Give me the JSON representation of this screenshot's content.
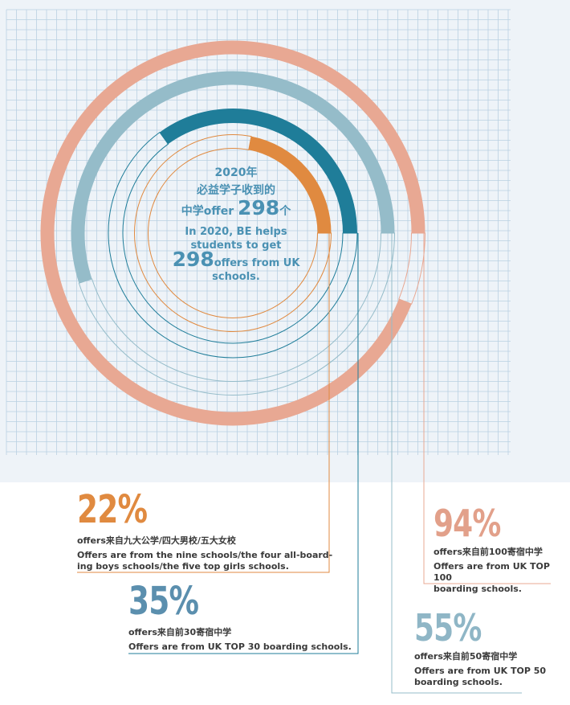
{
  "colors": {
    "grid_bg": "#eef3f8",
    "grid_line": "#b9d0e2",
    "ring_100": "#e8a893",
    "ring_50": "#95bcc9",
    "ring_30": "#1f7d99",
    "ring_nine": "#e08a40",
    "center_text": "#4a91b3"
  },
  "center": {
    "line1": "2020年",
    "line2": "必益学子收到的",
    "line3_prefix": "中学offer ",
    "line3_number": "298",
    "line3_suffix": "个",
    "en_line1": "In 2020, BE helps",
    "en_line2": "students to get",
    "en_number": "298",
    "en_line3_suffix": "offers from UK",
    "en_line4": "schools."
  },
  "chart_data": {
    "type": "radial-bar",
    "total_offers": 298,
    "year": 2020,
    "series": [
      {
        "name": "UK TOP 100 boarding schools",
        "value": 94
      },
      {
        "name": "UK TOP 50 boarding schools",
        "value": 55
      },
      {
        "name": "UK TOP 30 boarding schools",
        "value": 35
      },
      {
        "name": "nine schools/four all-boarding boys schools/five top girls schools",
        "value": 22
      }
    ]
  },
  "stats": {
    "nine": {
      "percent": "22%",
      "zh": "offers来自九大公学/四大男校/五大女校",
      "en1": "Offers are from the nine schools/the four all-board-",
      "en2": "ing boys schools/the five top girls schools."
    },
    "top30": {
      "percent": "35%",
      "zh": "offers来自前30寄宿中学",
      "en1": "Offers are from UK TOP 30 boarding schools."
    },
    "top100": {
      "percent": "94%",
      "zh": "offers来自前100寄宿中学",
      "en1": "Offers are from UK TOP 100",
      "en2": "boarding schools."
    },
    "top50": {
      "percent": "55%",
      "zh": "offers来自前50寄宿中学",
      "en1": "Offers are from UK TOP 50",
      "en2": "boarding schools."
    }
  }
}
